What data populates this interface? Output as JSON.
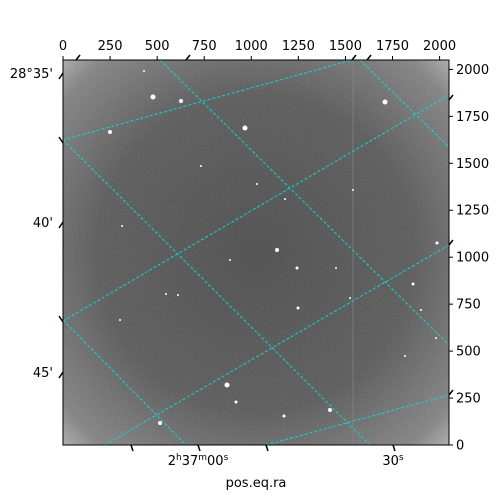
{
  "chart_data": {
    "type": "sky-image",
    "xlabel": "pos.eq.ra",
    "ylabel": "",
    "pixel_axes": {
      "xlim": [
        0,
        2050
      ],
      "ylim": [
        0,
        2050
      ],
      "x_ticks": [
        0,
        250,
        500,
        750,
        1000,
        1250,
        1500,
        1750,
        2000
      ],
      "y_ticks": [
        0,
        250,
        500,
        750,
        1000,
        1250,
        1500,
        1750,
        2000
      ],
      "x_tick_labels": [
        "0",
        "250",
        "500",
        "750",
        "1000",
        "1250",
        "1500",
        "1750",
        "2000"
      ],
      "y_tick_labels": [
        "0",
        "250",
        "500",
        "750",
        "1000",
        "1250",
        "1500",
        "1750",
        "2000"
      ]
    },
    "ra_ticks": [
      {
        "label": "2h37m00s",
        "base": "2",
        "sup1": "h",
        "mid": "37",
        "sup2": "m",
        "mid2": "00",
        "sup3": "s"
      },
      {
        "label": "30s",
        "base": "30",
        "sup1": "s"
      }
    ],
    "dec_ticks": [
      {
        "label": "28°35'"
      },
      {
        "label": "40'"
      },
      {
        "label": "45'"
      }
    ],
    "grid": true,
    "grid_color": "#00e5e5",
    "image_colormap": "grayscale",
    "background_level": "#5a5a5a"
  }
}
